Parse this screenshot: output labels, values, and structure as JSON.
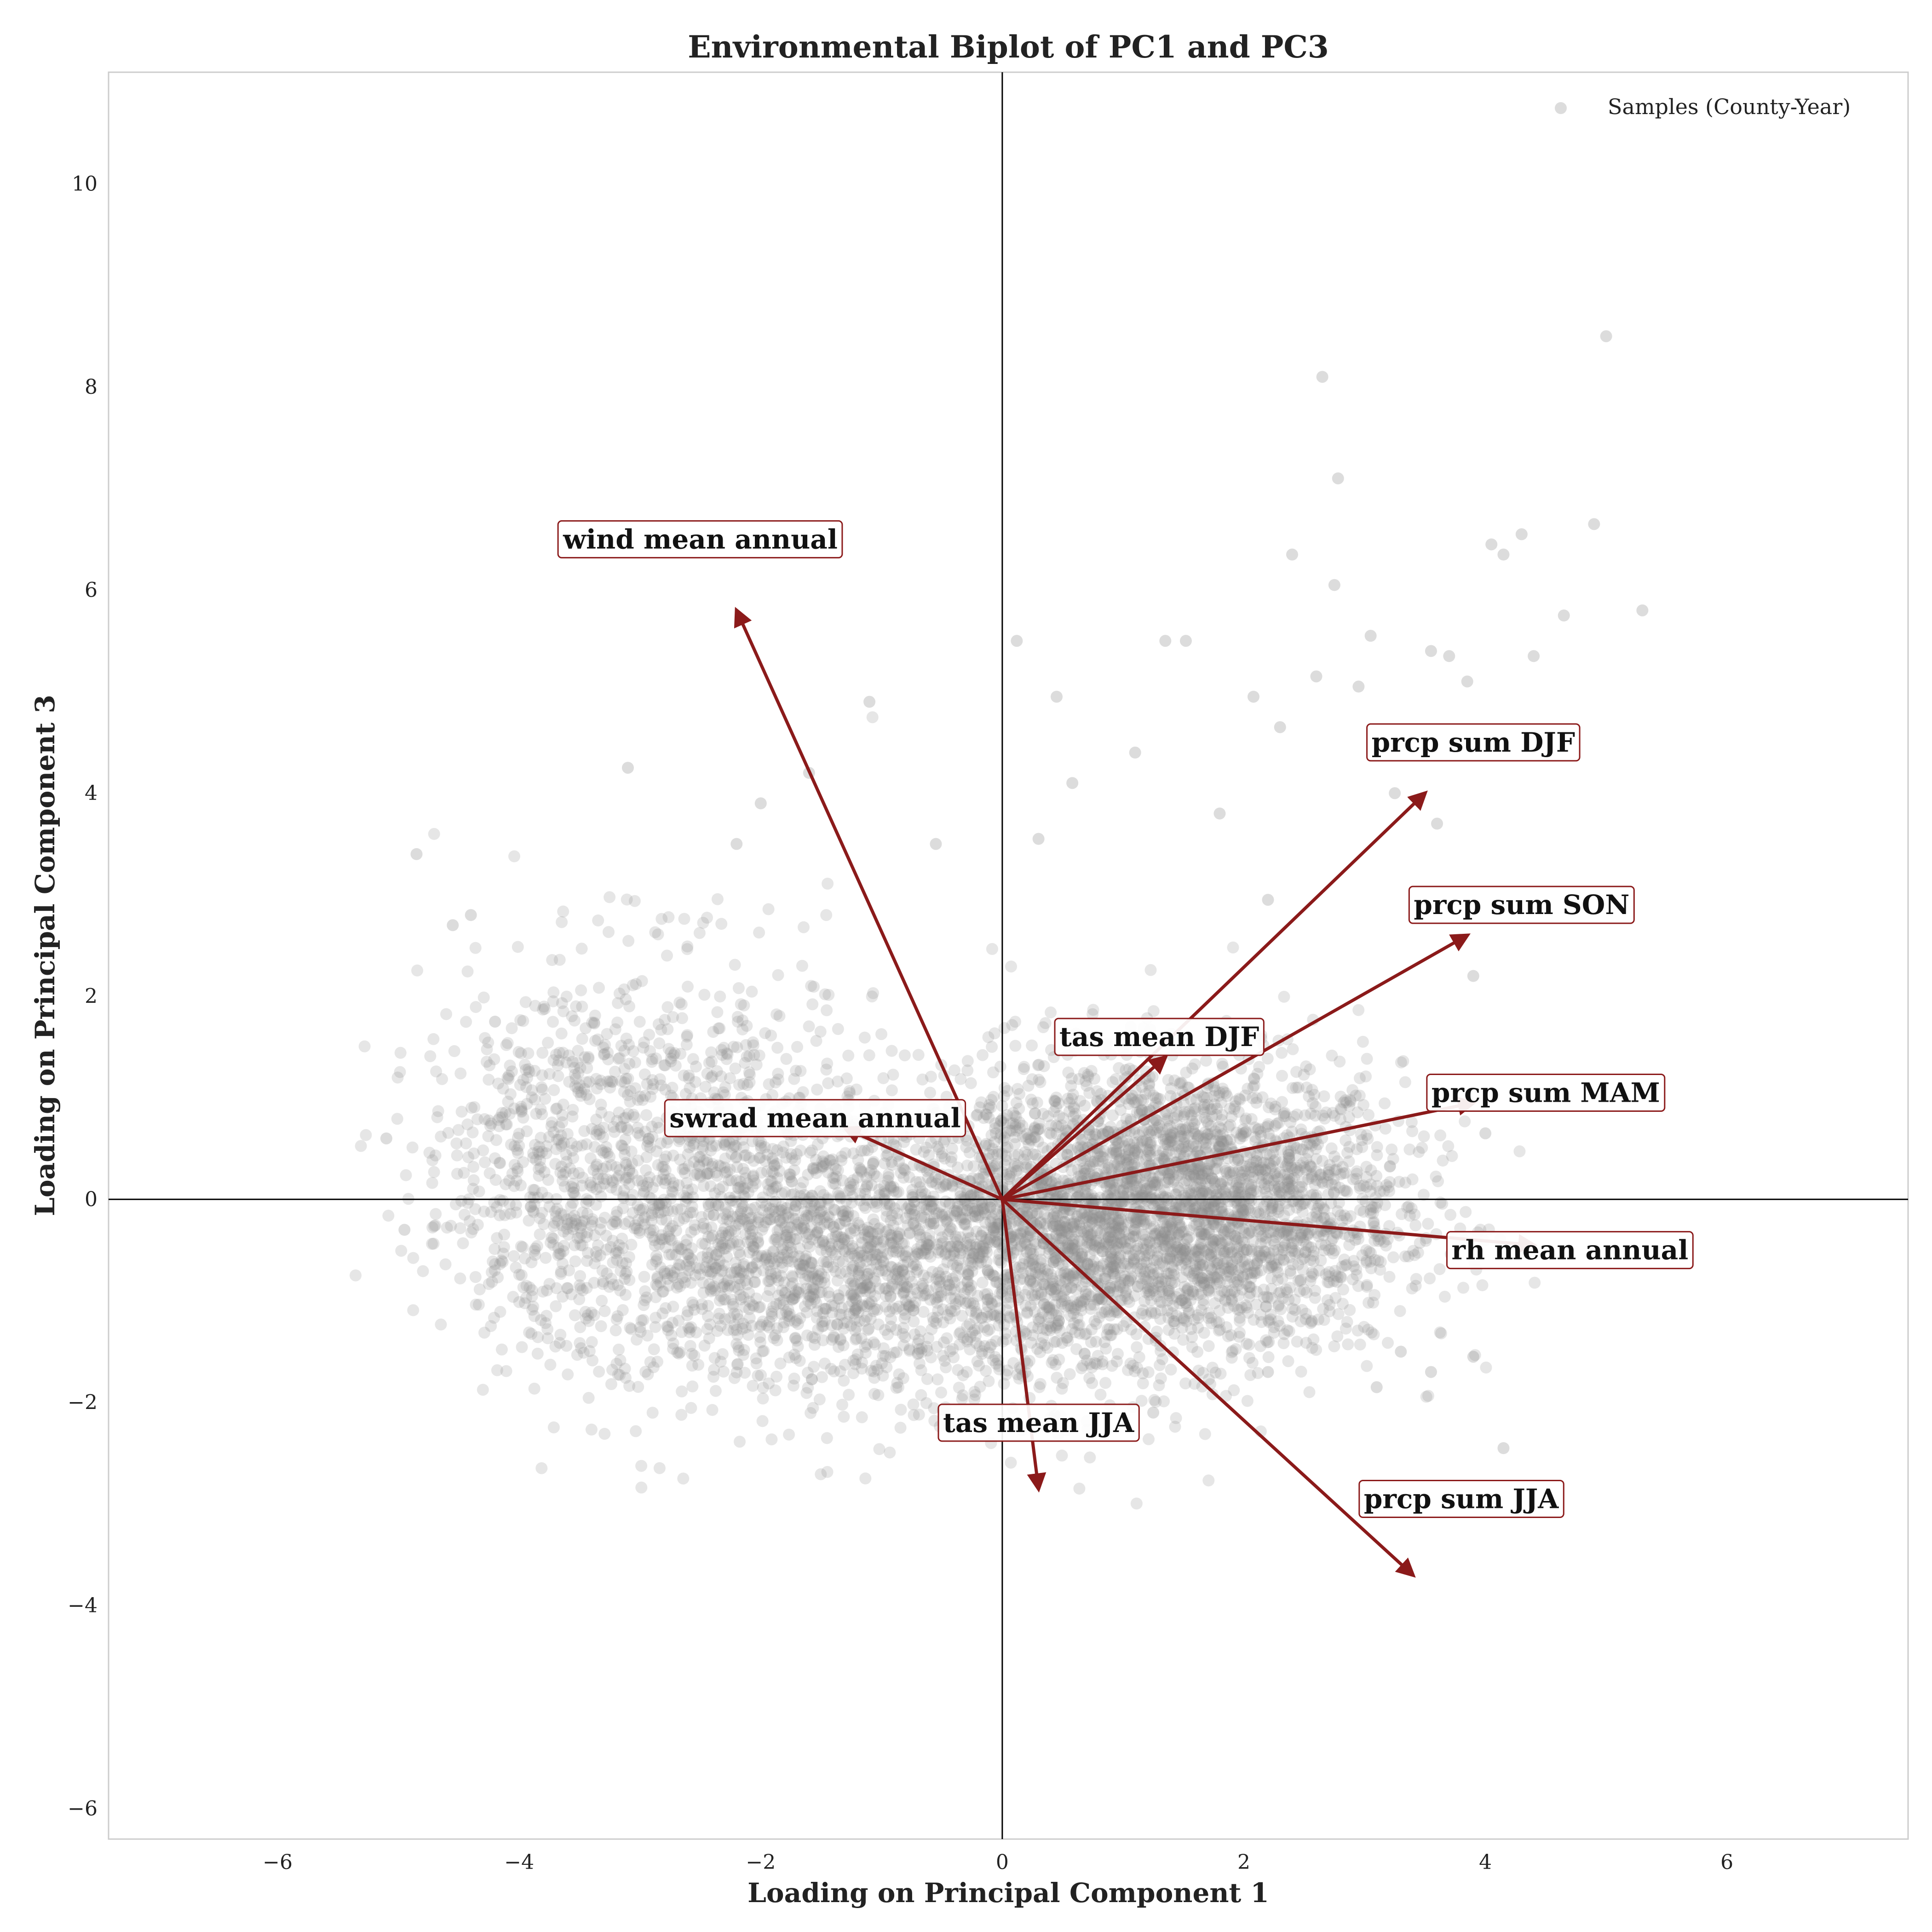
{
  "chart_data": {
    "type": "scatter",
    "title": "Environmental Biplot of PC1 and PC3",
    "xlabel": "Loading on Principal Component 1",
    "ylabel": "Loading on Principal Component 3",
    "xlim": [
      -7.4,
      7.5
    ],
    "ylim": [
      -6.3,
      11.1
    ],
    "xticks": [
      -6,
      -4,
      -2,
      0,
      2,
      4,
      6
    ],
    "yticks": [
      -6,
      -4,
      -2,
      0,
      2,
      4,
      6,
      8,
      10
    ],
    "grid": false,
    "legend": {
      "position": "top-right",
      "entries": [
        "Samples (County-Year)"
      ]
    },
    "colors": {
      "points": "#8c8c8c",
      "arrows": "#8b1a1a",
      "label_border": "#8b1a1a",
      "axes_lines": "#000000",
      "frame": "#cccccc"
    },
    "series": [
      {
        "name": "Samples (County-Year)",
        "kind": "scatter",
        "x": [
          5.0,
          2.65,
          2.78,
          4.9,
          4.3,
          4.05,
          4.15,
          2.4,
          2.75,
          5.3,
          4.65,
          0.12,
          2.08,
          0.45,
          2.6,
          2.95,
          3.85,
          3.55,
          3.7,
          1.52,
          4.4,
          3.05,
          1.1,
          1.35,
          0.58,
          2.3,
          3.25,
          3.6,
          -1.1,
          -1.6,
          -2.0,
          0.3,
          1.8,
          2.2,
          -2.2,
          -4.85,
          -3.1,
          -0.55,
          3.9,
          4.0,
          3.9,
          3.55,
          4.15,
          3.1,
          -4.95,
          -5.1,
          -4.4,
          -4.55,
          -4.2,
          2.2,
          3.3,
          1.25,
          0.4,
          -0.35
        ],
        "y": [
          8.5,
          8.1,
          7.1,
          6.65,
          6.55,
          6.45,
          6.35,
          6.35,
          6.05,
          5.8,
          5.75,
          5.5,
          4.95,
          4.95,
          5.15,
          5.05,
          5.1,
          5.4,
          5.35,
          5.5,
          5.35,
          5.55,
          4.4,
          5.5,
          4.1,
          4.65,
          4.0,
          3.7,
          4.9,
          4.2,
          3.9,
          3.55,
          3.8,
          2.95,
          3.5,
          3.4,
          4.25,
          3.5,
          2.2,
          0.65,
          -1.55,
          -1.7,
          -2.45,
          -1.85,
          -0.3,
          0.6,
          2.8,
          2.7,
          1.75,
          -1.7,
          -1.5,
          -2.1,
          -2.15,
          -2.25
        ],
        "cloud": [
          {
            "cx": 1.6,
            "cy": -0.1,
            "sx": 0.85,
            "sy": 0.72,
            "n": 2600
          },
          {
            "cx": 0.3,
            "cy": -0.35,
            "sx": 0.55,
            "sy": 0.8,
            "n": 900
          },
          {
            "cx": -1.2,
            "cy": -0.55,
            "sx": 0.9,
            "sy": 0.65,
            "n": 1400
          },
          {
            "cx": -2.7,
            "cy": 0.25,
            "sx": 0.85,
            "sy": 1.05,
            "n": 1100
          },
          {
            "cx": -3.9,
            "cy": 0.3,
            "sx": 0.45,
            "sy": 0.85,
            "n": 300
          }
        ]
      }
    ],
    "loadings": [
      {
        "label": "wind mean annual",
        "x": -2.2,
        "y": 5.8,
        "label_x": -2.5,
        "label_y": 6.5
      },
      {
        "label": "prcp sum DJF",
        "x": 3.5,
        "y": 4.0,
        "label_x": 3.9,
        "label_y": 4.5
      },
      {
        "label": "prcp sum SON",
        "x": 3.85,
        "y": 2.6,
        "label_x": 4.3,
        "label_y": 2.9
      },
      {
        "label": "tas mean DJF",
        "x": 1.35,
        "y": 1.4,
        "label_x": 1.3,
        "label_y": 1.6
      },
      {
        "label": "prcp sum MAM",
        "x": 3.9,
        "y": 0.95,
        "label_x": 4.5,
        "label_y": 1.05
      },
      {
        "label": "swrad mean annual",
        "x": -1.3,
        "y": 0.7,
        "label_x": -1.55,
        "label_y": 0.8
      },
      {
        "label": "rh mean annual",
        "x": 4.4,
        "y": -0.45,
        "label_x": 4.7,
        "label_y": -0.5
      },
      {
        "label": "tas mean JJA",
        "x": 0.3,
        "y": -2.85,
        "label_x": 0.3,
        "label_y": -2.2
      },
      {
        "label": "prcp sum JJA",
        "x": 3.4,
        "y": -3.7,
        "label_x": 3.8,
        "label_y": -2.95
      }
    ]
  }
}
